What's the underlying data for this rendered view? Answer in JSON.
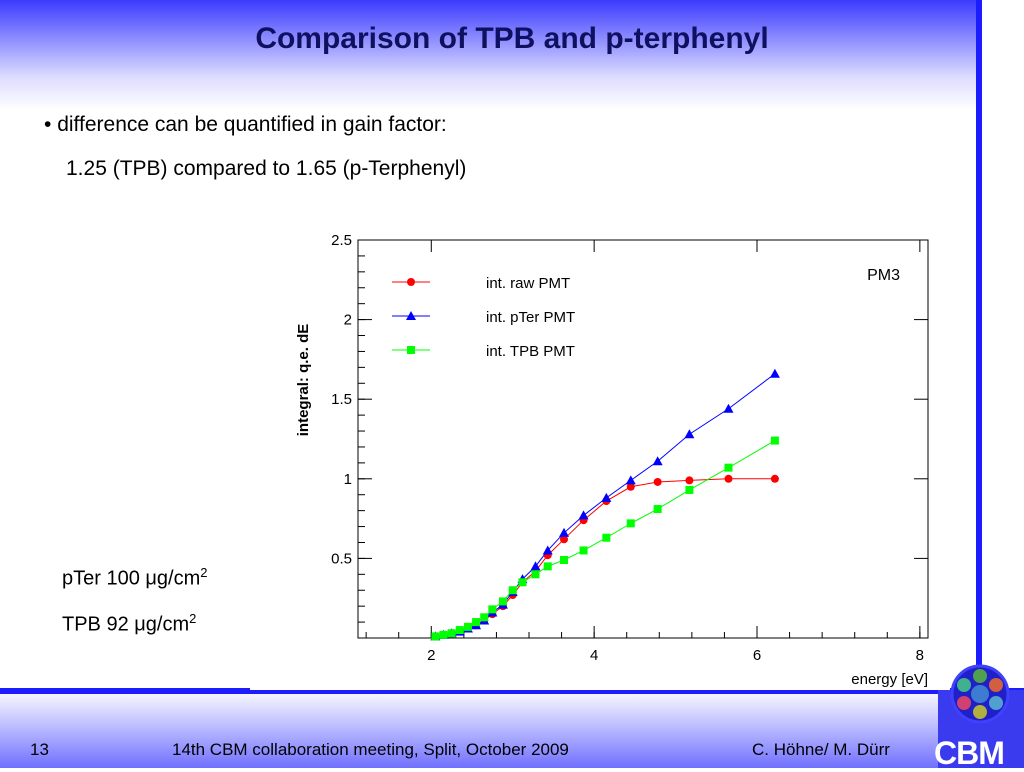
{
  "slide": {
    "title": "Comparison of TPB and p-terphenyl",
    "bullet_line1": "difference can be quantified in gain factor:",
    "bullet_line2": "1.25 (TPB) compared to 1.65 (p-Terphenyl)",
    "note1": {
      "prefix": "pTer 100 ",
      "mu": "μ",
      "unit": "g/cm",
      "sup": "2"
    },
    "note2": {
      "prefix": "TPB 92 ",
      "mu": "μ",
      "unit": "g/cm",
      "sup": "2"
    },
    "footer_page": "13",
    "footer_center": "14th CBM collaboration meeting, Split, October 2009",
    "footer_right": "C. Höhne/ M. Dürr",
    "logo_text": "CBM"
  },
  "chart_data": {
    "type": "line",
    "title": "",
    "annotation": "PM3",
    "xlabel": "energy [eV]",
    "ylabel": "integral: q.e. dE",
    "xlim": [
      1.1,
      8.1
    ],
    "ylim": [
      0,
      2.5
    ],
    "xticks": [
      2,
      4,
      6,
      8
    ],
    "yticks": [
      0.5,
      1,
      1.5,
      2,
      2.5
    ],
    "grid": false,
    "legend_position": "top-left",
    "series": [
      {
        "name": "int. raw PMT",
        "color": "#ff0000",
        "marker": "circle",
        "x": [
          2.05,
          2.15,
          2.25,
          2.35,
          2.45,
          2.55,
          2.65,
          2.75,
          2.88,
          3.0,
          3.12,
          3.28,
          3.43,
          3.63,
          3.87,
          4.15,
          4.45,
          4.78,
          5.17,
          5.65,
          6.22
        ],
        "y": [
          0.01,
          0.02,
          0.03,
          0.04,
          0.06,
          0.08,
          0.11,
          0.15,
          0.2,
          0.27,
          0.35,
          0.42,
          0.52,
          0.62,
          0.74,
          0.86,
          0.95,
          0.98,
          0.99,
          1.0,
          1.0
        ]
      },
      {
        "name": "int. pTer PMT",
        "color": "#0000ff",
        "marker": "triangle",
        "x": [
          2.05,
          2.15,
          2.25,
          2.35,
          2.45,
          2.55,
          2.65,
          2.75,
          2.88,
          3.0,
          3.12,
          3.28,
          3.43,
          3.63,
          3.87,
          4.15,
          4.45,
          4.78,
          5.17,
          5.65,
          6.22
        ],
        "y": [
          0.01,
          0.02,
          0.03,
          0.04,
          0.06,
          0.08,
          0.11,
          0.16,
          0.21,
          0.29,
          0.37,
          0.45,
          0.55,
          0.66,
          0.77,
          0.88,
          0.99,
          1.11,
          1.28,
          1.44,
          1.66
        ]
      },
      {
        "name": "int. TPB PMT",
        "color": "#00ff00",
        "marker": "square",
        "x": [
          2.05,
          2.15,
          2.25,
          2.35,
          2.45,
          2.55,
          2.65,
          2.75,
          2.88,
          3.0,
          3.12,
          3.28,
          3.43,
          3.63,
          3.87,
          4.15,
          4.45,
          4.78,
          5.17,
          5.65,
          6.22
        ],
        "y": [
          0.01,
          0.02,
          0.03,
          0.05,
          0.07,
          0.1,
          0.13,
          0.18,
          0.23,
          0.3,
          0.35,
          0.4,
          0.45,
          0.49,
          0.55,
          0.63,
          0.72,
          0.81,
          0.93,
          1.07,
          1.24
        ]
      }
    ]
  }
}
